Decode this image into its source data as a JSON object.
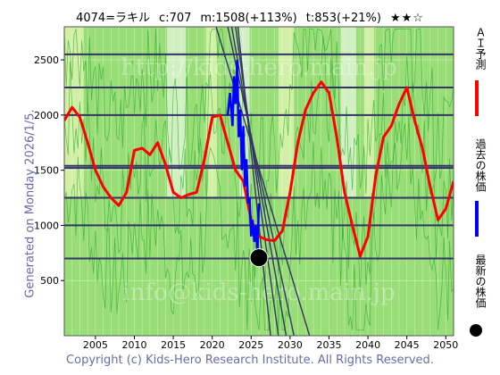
{
  "header": {
    "code_name": "4074=ラキル",
    "current": "c:707",
    "mean": "m:1508(+113%)",
    "target": "t:853(+21%)",
    "stars": "★★☆"
  },
  "side_label": "Generated on Monday 2026/1/5.",
  "watermark_top": "http://kids-hero.main.jp",
  "watermark_bottom": "info@kids-hero.main.jp",
  "copyright": "Copyright (c) Kids-Hero Research Institute. All Rights Reserved.",
  "legend": [
    {
      "label": "ＡＩ予測",
      "color": "#ff0000"
    },
    {
      "label": "過去の株価",
      "color": "#0000ff"
    },
    {
      "label": "最新の株価",
      "color": "#000000"
    }
  ],
  "colors": {
    "background": "#99dd77",
    "ai_line": "#ff0000",
    "price_line": "#0000ff",
    "hline": "#333366",
    "axis_text": "#000000",
    "green_line": "#22aa22"
  },
  "chart_data": {
    "type": "line",
    "xlim": [
      2001,
      2051
    ],
    "ylim": [
      0,
      2800
    ],
    "x_ticks": [
      2005,
      2010,
      2015,
      2020,
      2025,
      2030,
      2035,
      2040,
      2045,
      2050
    ],
    "y_ticks": [
      500,
      1000,
      1500,
      2000,
      2500
    ],
    "horizontal_lines": [
      700,
      1000,
      1250,
      1520,
      1540,
      2000,
      2250,
      2550
    ],
    "ai_forecast": {
      "x": [
        2001,
        2002,
        2003,
        2004,
        2005,
        2006,
        2007,
        2008,
        2009,
        2010,
        2011,
        2012,
        2013,
        2014,
        2015,
        2016,
        2017,
        2018,
        2019,
        2020,
        2021,
        2022,
        2023,
        2024,
        2025,
        2026,
        2027,
        2028,
        2029,
        2030,
        2031,
        2032,
        2033,
        2034,
        2035,
        2036,
        2037,
        2038,
        2039,
        2040,
        2041,
        2042,
        2043,
        2044,
        2045,
        2046,
        2047,
        2048,
        2049,
        2050,
        2051
      ],
      "y": [
        1950,
        2070,
        1980,
        1750,
        1500,
        1350,
        1250,
        1180,
        1300,
        1680,
        1700,
        1640,
        1750,
        1550,
        1300,
        1250,
        1280,
        1300,
        1600,
        1980,
        2000,
        1750,
        1500,
        1400,
        1050,
        900,
        870,
        860,
        950,
        1300,
        1750,
        2050,
        2200,
        2300,
        2200,
        1800,
        1300,
        1000,
        720,
        900,
        1450,
        1800,
        1900,
        2100,
        2250,
        1950,
        1700,
        1350,
        1050,
        1150,
        1400
      ]
    },
    "past_price": {
      "x": [
        2022.0,
        2022.3,
        2022.6,
        2022.8,
        2023.0,
        2023.2,
        2023.4,
        2023.6,
        2023.8,
        2024.0,
        2024.2,
        2024.4,
        2024.6,
        2024.8,
        2025.0,
        2025.2,
        2025.4,
        2025.6,
        2025.8,
        2026.0
      ],
      "y": [
        2000,
        2200,
        1900,
        2350,
        2100,
        2500,
        1800,
        2050,
        1500,
        1900,
        1350,
        1600,
        1200,
        1250,
        900,
        1050,
        850,
        1000,
        750,
        1200
      ]
    },
    "latest_price": {
      "x": 2026.0,
      "y": 707
    },
    "trend_lines": [
      {
        "x": [
          2020.5,
          2032.5
        ],
        "y": [
          2800,
          0
        ]
      },
      {
        "x": [
          2022.0,
          2030.5
        ],
        "y": [
          2800,
          0
        ]
      },
      {
        "x": [
          2022.5,
          2029.5
        ],
        "y": [
          2800,
          0
        ]
      },
      {
        "x": [
          2023.0,
          2028.5
        ],
        "y": [
          2800,
          0
        ]
      },
      {
        "x": [
          2023.3,
          2027.5
        ],
        "y": [
          2800,
          0
        ]
      }
    ]
  }
}
